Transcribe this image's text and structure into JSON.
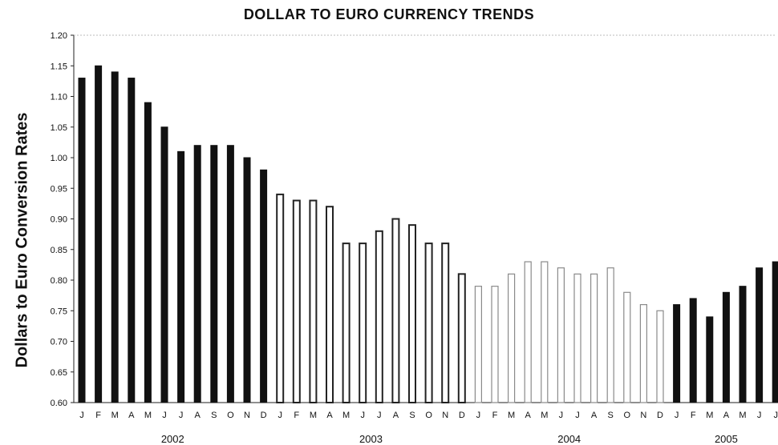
{
  "chart_data": {
    "type": "bar",
    "title": "DOLLAR TO EURO CURRENCY TRENDS",
    "ylabel": "Dollars to Euro Conversion Rates",
    "xlabel": "",
    "ylim": [
      0.6,
      1.2
    ],
    "yticks": [
      "1.20",
      "1.15",
      "1.10",
      "1.05",
      "1.00",
      "0.95",
      "0.90",
      "0.85",
      "0.80",
      "0.75",
      "0.70",
      "0.65",
      "0.60"
    ],
    "grid": false,
    "categories": [
      "J",
      "F",
      "M",
      "A",
      "M",
      "J",
      "J",
      "A",
      "S",
      "O",
      "N",
      "D",
      "J",
      "F",
      "M",
      "A",
      "M",
      "J",
      "J",
      "A",
      "S",
      "O",
      "N",
      "D",
      "J",
      "F",
      "M",
      "A",
      "M",
      "J",
      "J",
      "A",
      "S",
      "O",
      "N",
      "D",
      "J",
      "F",
      "M",
      "A",
      "M",
      "J",
      "J"
    ],
    "values": [
      1.13,
      1.15,
      1.14,
      1.13,
      1.09,
      1.05,
      1.01,
      1.02,
      1.02,
      1.02,
      1.0,
      0.98,
      0.94,
      0.93,
      0.93,
      0.92,
      0.86,
      0.86,
      0.88,
      0.9,
      0.89,
      0.86,
      0.86,
      0.81,
      0.79,
      0.79,
      0.81,
      0.83,
      0.83,
      0.82,
      0.81,
      0.81,
      0.82,
      0.78,
      0.76,
      0.75,
      0.76,
      0.77,
      0.74,
      0.78,
      0.79,
      0.82,
      0.83
    ],
    "year_groups": [
      {
        "label": "2002",
        "count": 12,
        "style": "solid"
      },
      {
        "label": "2003",
        "count": 12,
        "style": "hollow"
      },
      {
        "label": "2004",
        "count": 12,
        "style": "light"
      },
      {
        "label": "2005",
        "count": 7,
        "style": "solid"
      }
    ],
    "colors": {
      "solid": "#111111",
      "hollow_fill": "#ffffff",
      "hollow_stroke": "#222222",
      "light_stroke": "#8a8a8a"
    }
  }
}
